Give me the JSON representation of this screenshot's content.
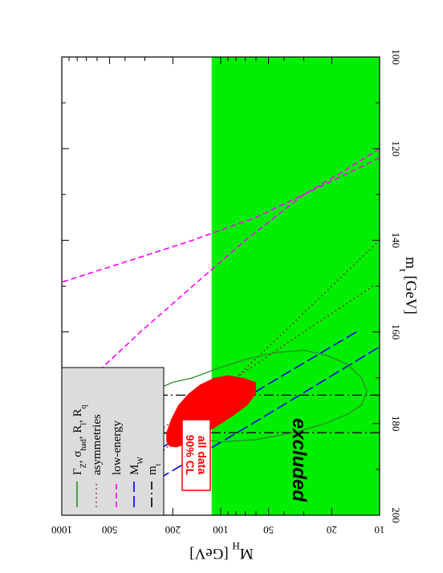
{
  "chart_data": {
    "type": "line",
    "orientation": "rotated-90-clockwise",
    "title": "",
    "xlabel_parts": {
      "base": "m",
      "sub": "t",
      "tail": " [GeV]"
    },
    "ylabel_parts": {
      "base": "M",
      "sub": "H",
      "tail": " [GeV]"
    },
    "xlim": [
      100,
      200
    ],
    "ylim": [
      10,
      1000
    ],
    "y_scale": "log",
    "x_ticks": [
      100,
      120,
      140,
      160,
      180,
      200
    ],
    "x_tick_labels": [
      "100",
      "120",
      "140",
      "160",
      "180",
      "200"
    ],
    "y_ticks": [
      10,
      20,
      50,
      100,
      200,
      500,
      1000
    ],
    "y_tick_labels": [
      "10",
      "20",
      "50",
      "100",
      "200",
      "500",
      "1000"
    ],
    "excluded_region": {
      "label": "excluded",
      "y_max": 114,
      "color": "#00ee00"
    },
    "all_data_region": {
      "label_lines": [
        "all data",
        "90% CL"
      ],
      "color": "#ff0000",
      "center": {
        "x": 177,
        "y": 125
      }
    },
    "legend": {
      "placement": "top-left",
      "entries": [
        {
          "id": "zpole",
          "color": "#2e8b2e",
          "dash": "",
          "parts": [
            {
              "t": "Γ",
              "s": "Z"
            },
            {
              "t": ", σ",
              "s": "had"
            },
            {
              "t": ", R",
              "s": "l"
            },
            {
              "t": ", R",
              "s": "q"
            }
          ]
        },
        {
          "id": "asym",
          "color": "#8b2020",
          "dash": "1.5,4",
          "parts": [
            {
              "t": "asymmetries",
              "s": ""
            }
          ]
        },
        {
          "id": "lowe",
          "color": "#ff00ff",
          "dash": "7,4",
          "parts": [
            {
              "t": "low-energy",
              "s": ""
            }
          ]
        },
        {
          "id": "mw",
          "color": "#0000ee",
          "dash": "14,5",
          "parts": [
            {
              "t": "M",
              "s": "W"
            }
          ]
        },
        {
          "id": "mt",
          "color": "#000000",
          "dash": "12,4,2,4",
          "parts": [
            {
              "t": "m",
              "s": "t"
            }
          ]
        }
      ]
    },
    "series": [
      {
        "id": "mw-upper",
        "color": "#0000ee",
        "dash": "14,5",
        "x": [
          160,
          170,
          180,
          190,
          200
        ],
        "y": [
          14,
          43,
          130,
          400,
          1100
        ]
      },
      {
        "id": "mw-lower",
        "color": "#0000ee",
        "dash": "14,5",
        "x": [
          160,
          170,
          180,
          190,
          200
        ],
        "y": [
          7,
          21,
          63,
          195,
          600
        ]
      },
      {
        "id": "asym-upper",
        "color": "#8b2020",
        "dash": "1.5,4",
        "x": [
          150,
          160,
          170,
          180,
          190,
          198
        ],
        "y": [
          11,
          30,
          80,
          210,
          540,
          1000
        ]
      },
      {
        "id": "asym-lower",
        "color": "#8b2020",
        "dash": "1.5,4",
        "x": [
          140,
          150,
          160,
          170,
          180,
          190,
          200
        ],
        "y": [
          10,
          20,
          40,
          80,
          155,
          300,
          580
        ]
      },
      {
        "id": "lowe-upper",
        "color": "#ff00ff",
        "dash": "7,4",
        "x": [
          120,
          125,
          130,
          140,
          150,
          160,
          170,
          180
        ],
        "y": [
          10,
          17,
          30,
          70,
          150,
          320,
          650,
          1200
        ]
      },
      {
        "id": "lowe-lower",
        "color": "#ff00ff",
        "dash": "7,4",
        "x": [
          122,
          125,
          130,
          135,
          140,
          145,
          150
        ],
        "y": [
          10,
          15,
          30,
          60,
          150,
          420,
          1200
        ]
      },
      {
        "id": "mt-left",
        "color": "#000000",
        "dash": "12,4,2,4",
        "x": [
          173.8,
          173.8
        ],
        "y": [
          10,
          1000
        ]
      },
      {
        "id": "mt-right",
        "color": "#000000",
        "dash": "12,4,2,4",
        "x": [
          182,
          182
        ],
        "y": [
          10,
          1000
        ]
      }
    ],
    "zpole_contour": {
      "color": "#2e8b2e",
      "points": [
        [
          170,
          150
        ],
        [
          171,
          200
        ],
        [
          172,
          235
        ],
        [
          174,
          250
        ],
        [
          176,
          255
        ],
        [
          178,
          260
        ],
        [
          180,
          270
        ],
        [
          182,
          240
        ],
        [
          183,
          160
        ],
        [
          184,
          100
        ],
        [
          183.5,
          60
        ],
        [
          182,
          35
        ],
        [
          180,
          22
        ],
        [
          178,
          16
        ],
        [
          176,
          13
        ],
        [
          173,
          12
        ],
        [
          170,
          13
        ],
        [
          167,
          16
        ],
        [
          165,
          22
        ],
        [
          164,
          30
        ],
        [
          164.5,
          45
        ],
        [
          166,
          70
        ],
        [
          168,
          105
        ],
        [
          170,
          150
        ]
      ]
    },
    "all_data_ellipse": {
      "color": "#ff0000",
      "points": [
        [
          171,
          60
        ],
        [
          170,
          72
        ],
        [
          169.5,
          90
        ],
        [
          170,
          110
        ],
        [
          171.5,
          135
        ],
        [
          173.5,
          160
        ],
        [
          176,
          185
        ],
        [
          179,
          205
        ],
        [
          182,
          220
        ],
        [
          184,
          220
        ],
        [
          185,
          210
        ],
        [
          185.2,
          190
        ],
        [
          184.5,
          165
        ],
        [
          183,
          140
        ],
        [
          181,
          110
        ],
        [
          178.5,
          85
        ],
        [
          176,
          68
        ],
        [
          173.5,
          60
        ],
        [
          171,
          60
        ]
      ]
    }
  }
}
